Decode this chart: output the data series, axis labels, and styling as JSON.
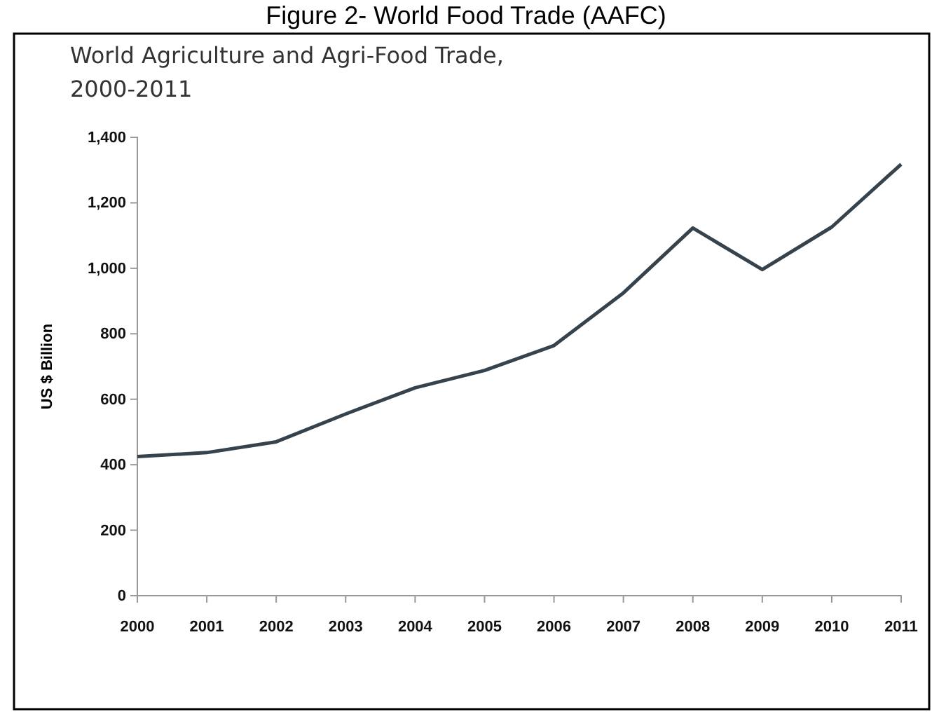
{
  "chart_data": {
    "type": "line",
    "title": "Figure 2- World Food Trade (AAFC)",
    "subtitle": "World Agriculture and Agri-Food Trade, 2000-2011",
    "ylabel": "US $ Billion",
    "x": [
      2000,
      2001,
      2002,
      2003,
      2004,
      2005,
      2006,
      2007,
      2008,
      2009,
      2010,
      2011
    ],
    "series": [
      {
        "color": "#36434c",
        "values": [
          425,
          437,
          470,
          555,
          635,
          688,
          764,
          925,
          1123,
          996,
          1126,
          1318
        ]
      }
    ],
    "xlim": [
      2000,
      2011
    ],
    "xticks": [
      2000,
      2001,
      2002,
      2003,
      2004,
      2005,
      2006,
      2007,
      2008,
      2009,
      2010,
      2011
    ],
    "ylim": [
      0,
      1400
    ],
    "yticks": [
      {
        "value": 0,
        "label": "0"
      },
      {
        "value": 200,
        "label": "200"
      },
      {
        "value": 400,
        "label": "400"
      },
      {
        "value": 600,
        "label": "600"
      },
      {
        "value": 800,
        "label": "800"
      },
      {
        "value": 1000,
        "label": "1,000"
      },
      {
        "value": 1200,
        "label": "1,200"
      },
      {
        "value": 1400,
        "label": "1,400"
      }
    ],
    "grid": false,
    "marker": "none",
    "line_style": "solid"
  }
}
